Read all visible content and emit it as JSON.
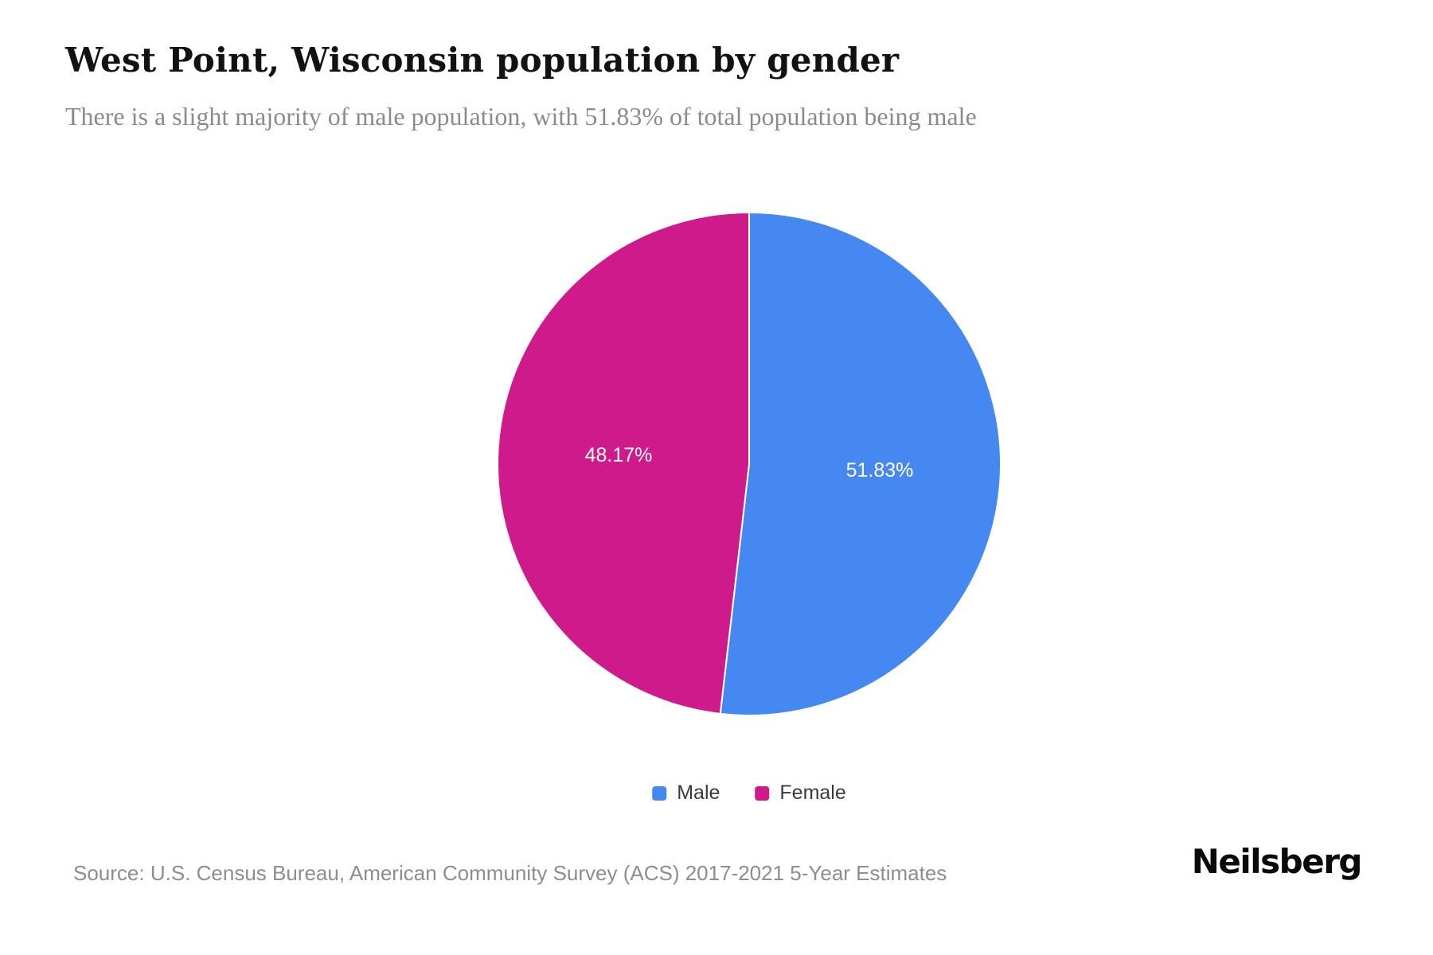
{
  "header": {
    "title": "West Point, Wisconsin population by gender",
    "subtitle": "There is a slight majority of male population, with 51.83% of total population being male"
  },
  "chart_data": {
    "type": "pie",
    "title": "West Point, Wisconsin population by gender",
    "start_angle_deg": 0,
    "direction": "clockwise",
    "legend_position": "bottom",
    "slices": [
      {
        "label": "Male",
        "value": 51.83,
        "display": "51.83%",
        "color": "#4688f1"
      },
      {
        "label": "Female",
        "value": 48.17,
        "display": "48.17%",
        "color": "#ce1a8b"
      }
    ]
  },
  "legend": {
    "items": [
      {
        "label": "Male",
        "color": "#4688f1"
      },
      {
        "label": "Female",
        "color": "#ce1a8b"
      }
    ]
  },
  "footer": {
    "source": "Source: U.S. Census Bureau, American Community Survey (ACS) 2017-2021 5-Year Estimates",
    "brand": "Neilsberg"
  }
}
